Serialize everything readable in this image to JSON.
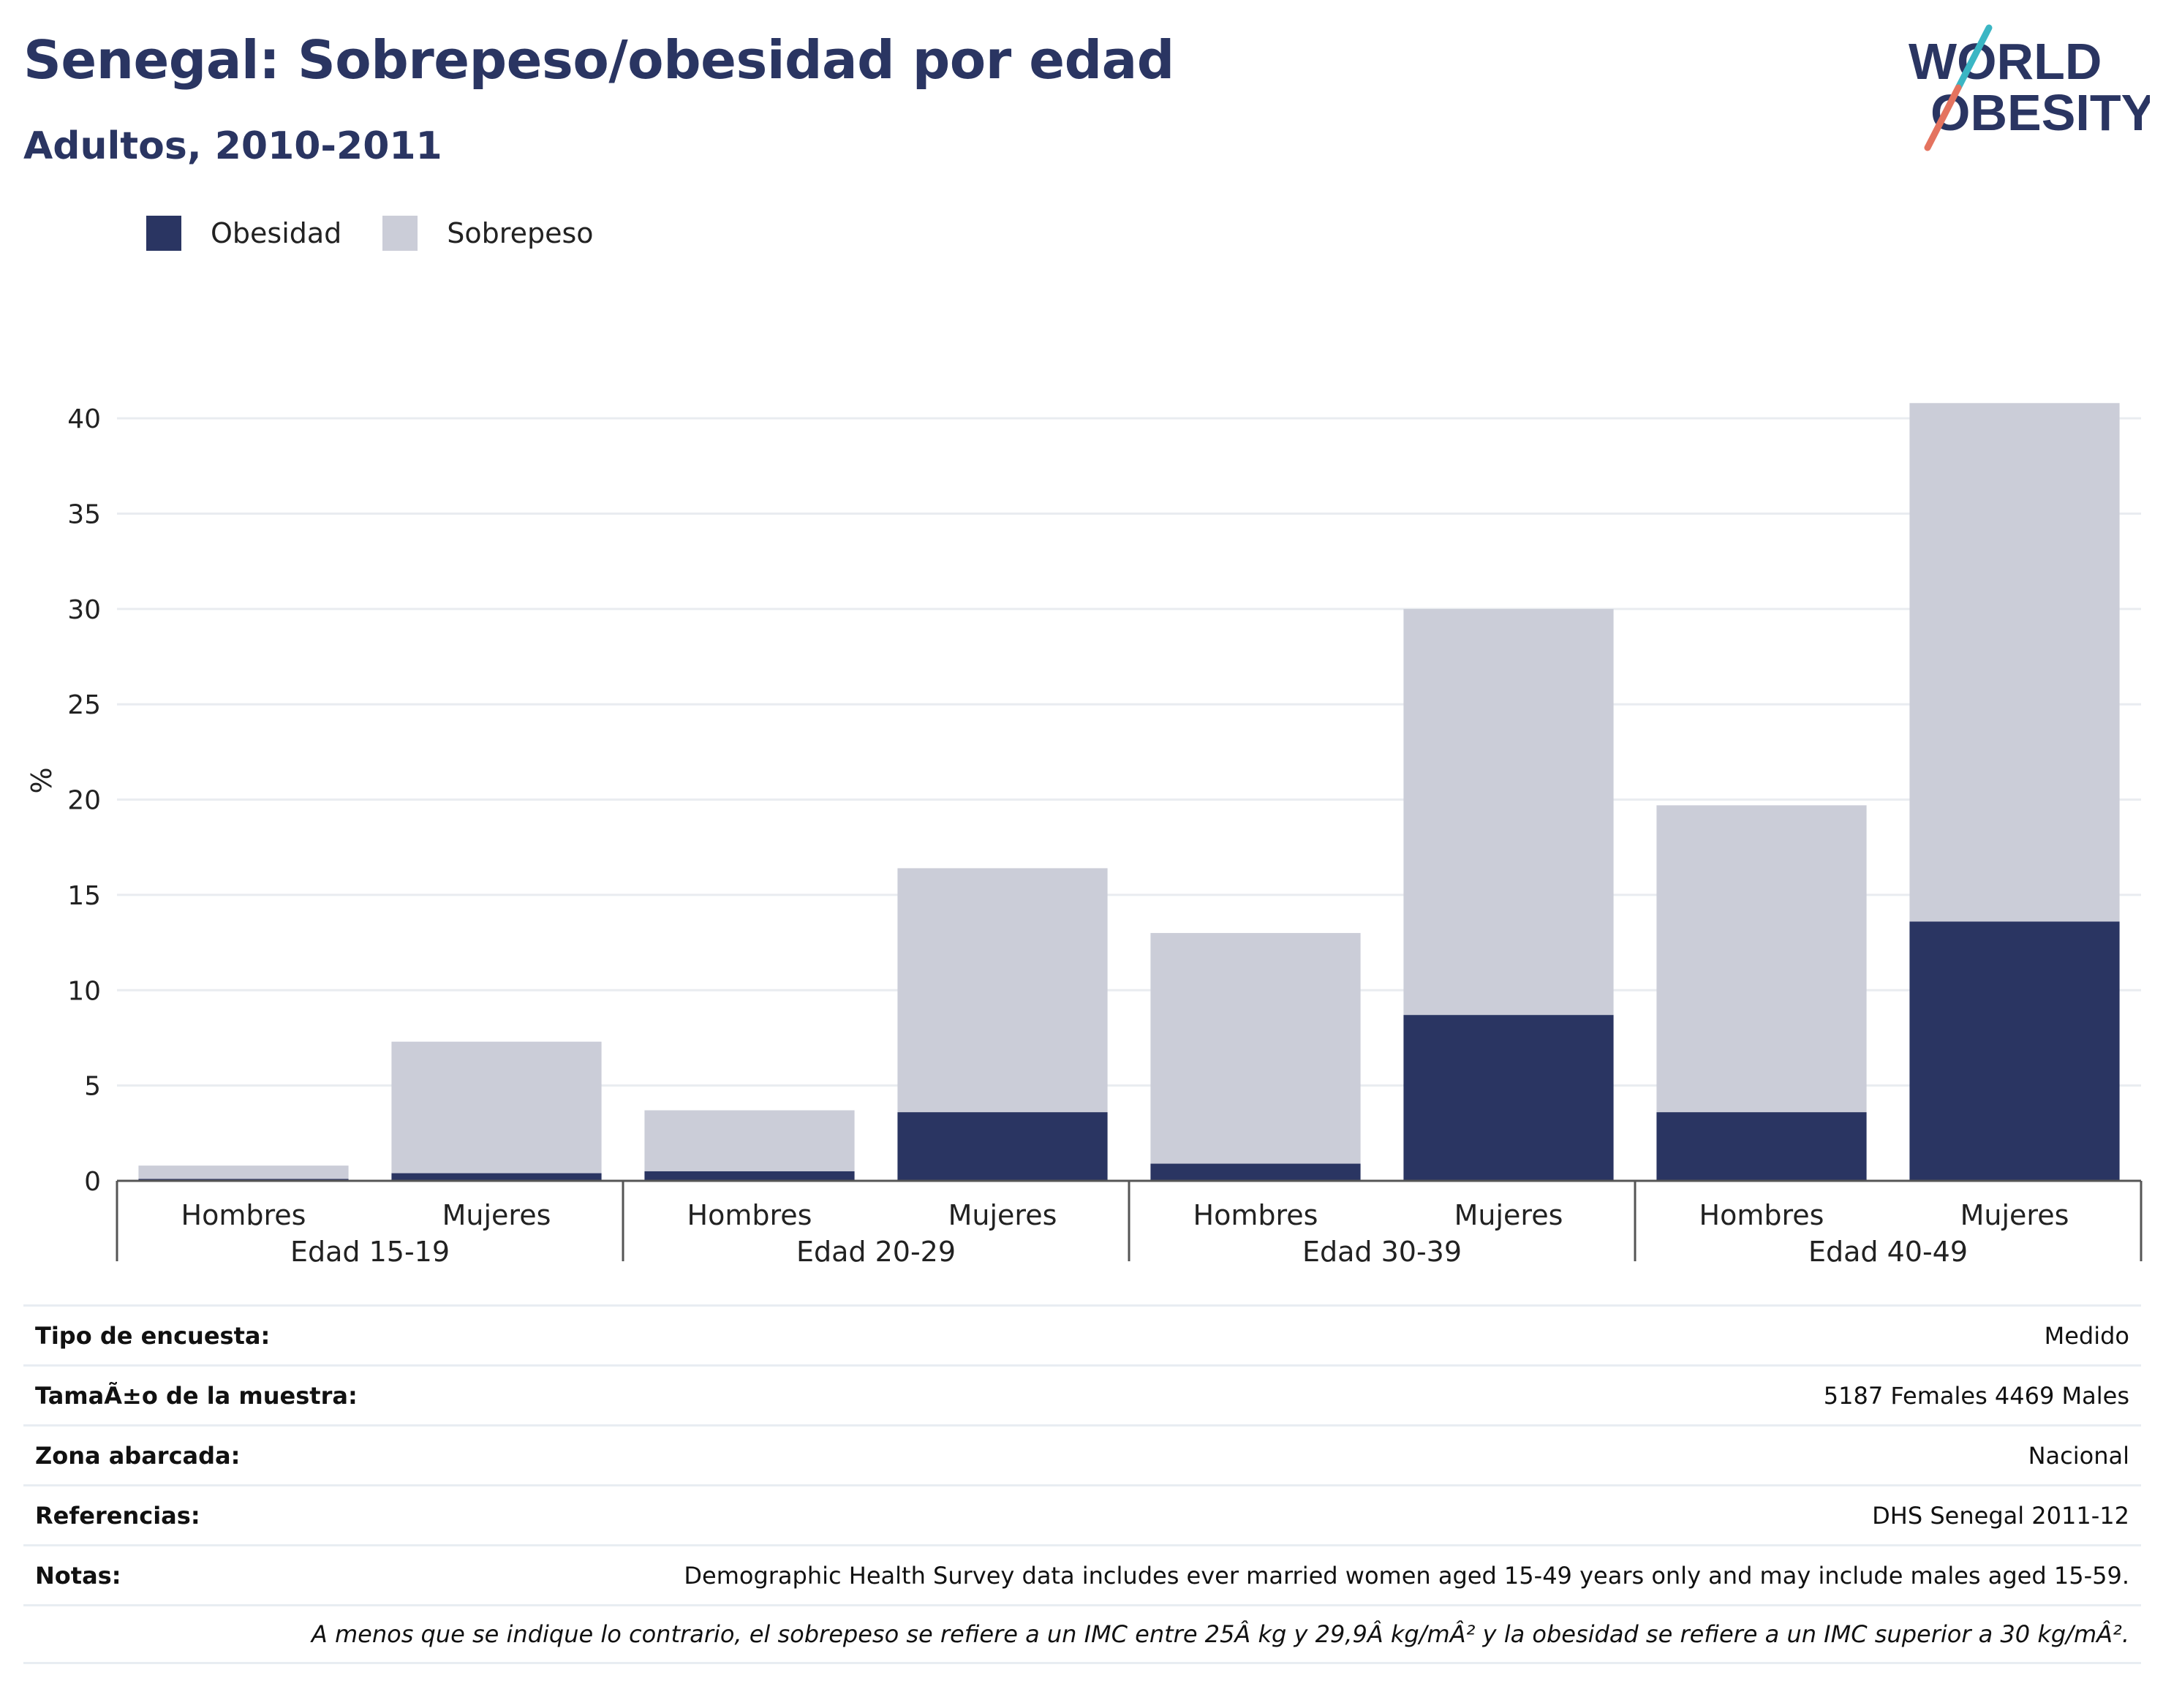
{
  "title": "Senegal: Sobrepeso/obesidad por edad",
  "subtitle": "Adultos, 2010-2011",
  "logo": {
    "line1": "WORLD",
    "line2": "OBESITY"
  },
  "colors": {
    "obesity": "#2a3562",
    "overweight": "#cbcdd8",
    "title": "#2a3562",
    "grid": "#e9ecf0",
    "logo_teal": "#3bb6c4",
    "logo_coral": "#e4735f"
  },
  "legend": {
    "obesity_label": "Obesidad",
    "overweight_label": "Sobrepeso"
  },
  "chart_data": {
    "type": "bar",
    "stacked": true,
    "ylabel": "%",
    "ylim": [
      0,
      42
    ],
    "yticks": [
      0,
      5,
      10,
      15,
      20,
      25,
      30,
      35,
      40
    ],
    "grid": true,
    "legend_position": "top-left",
    "groups": [
      "Edad 15-19",
      "Edad 20-29",
      "Edad 30-39",
      "Edad 40-49"
    ],
    "categories": [
      "Hombres",
      "Mujeres",
      "Hombres",
      "Mujeres",
      "Hombres",
      "Mujeres",
      "Hombres",
      "Mujeres"
    ],
    "series": [
      {
        "name": "Obesidad",
        "values": [
          0.1,
          0.4,
          0.5,
          3.6,
          0.9,
          8.7,
          3.6,
          13.6
        ]
      },
      {
        "name": "Sobrepeso",
        "values": [
          0.7,
          6.9,
          3.2,
          12.8,
          12.1,
          21.3,
          16.1,
          27.2
        ]
      }
    ]
  },
  "meta": {
    "survey_type": {
      "label": "Tipo de encuesta:",
      "value": "Medido"
    },
    "sample_size": {
      "label": "TamaÃ±o de la muestra:",
      "value": "5187 Females 4469 Males"
    },
    "area": {
      "label": "Zona abarcada:",
      "value": "Nacional"
    },
    "references": {
      "label": "Referencias:",
      "value": "DHS Senegal 2011-12"
    },
    "notes": {
      "label": "Notas:",
      "value": "Demographic Health Survey data includes ever married women aged 15-49 years only and may include males aged 15-59."
    },
    "footnote": "A menos que se indique lo contrario, el sobrepeso se refiere a un IMC entre 25Â kg y 29,9Â kg/mÂ² y la obesidad se refiere a un IMC superior a 30 kg/mÂ²."
  }
}
